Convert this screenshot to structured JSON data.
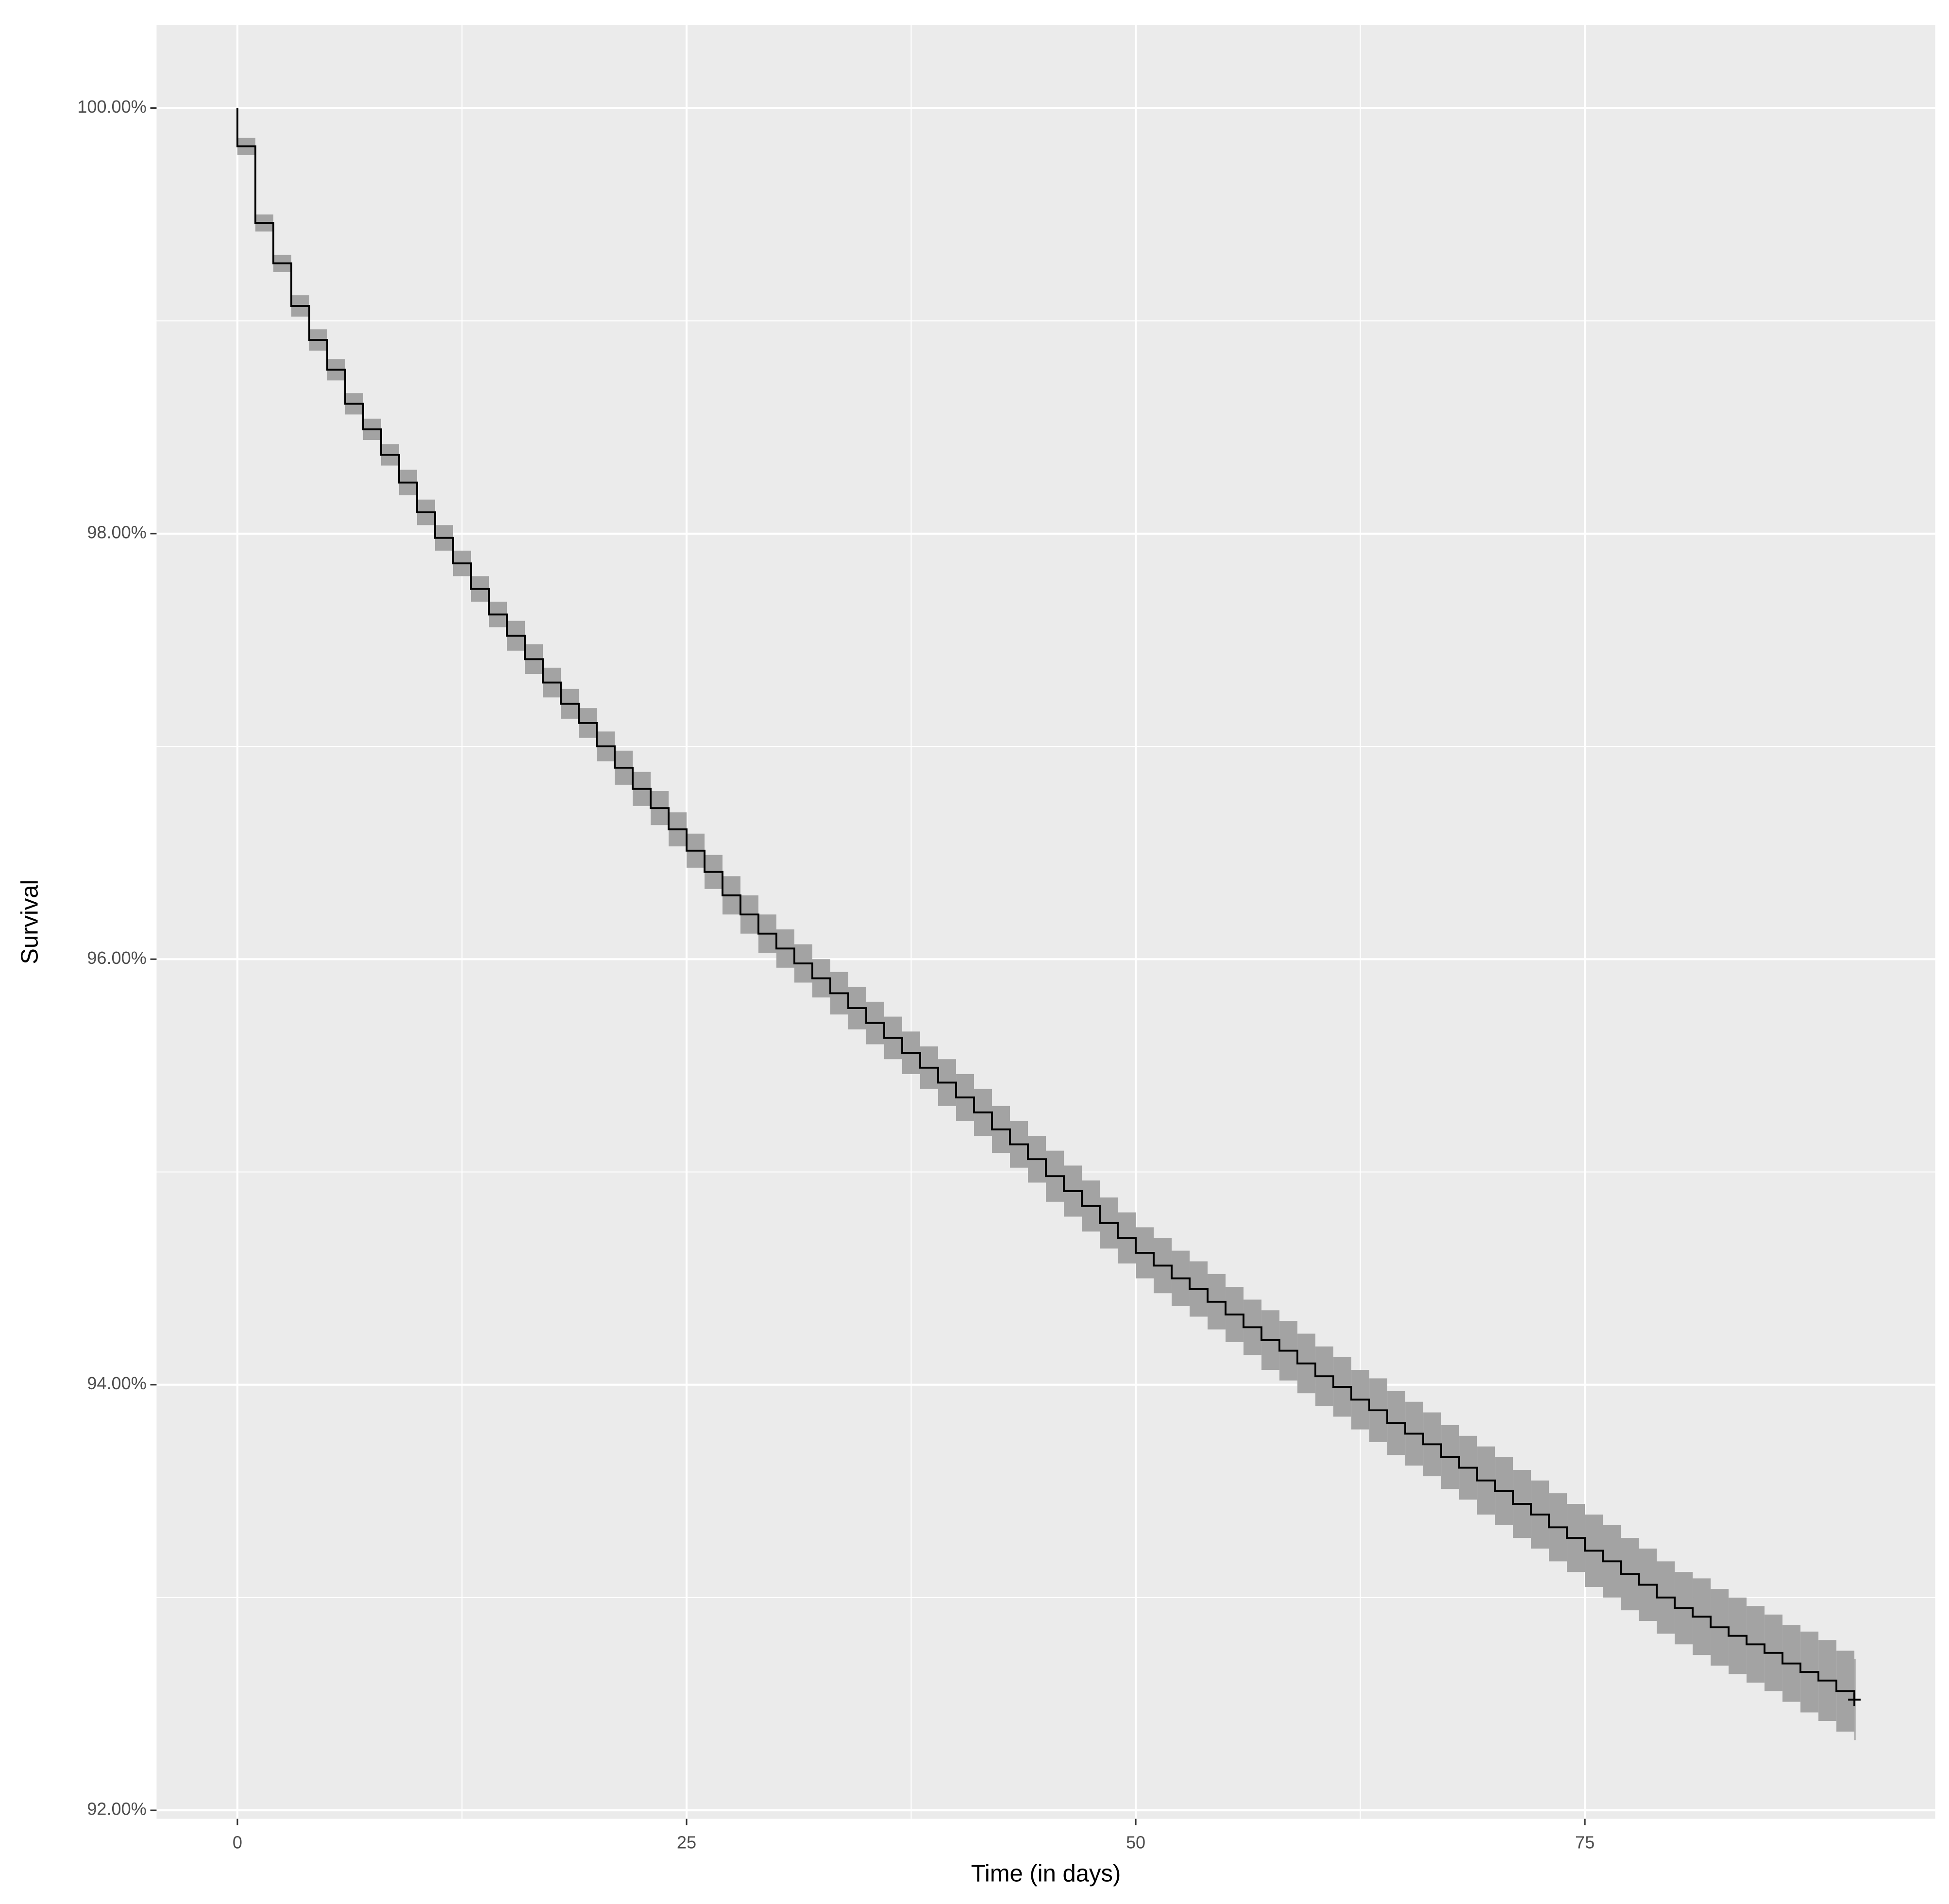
{
  "chart_data": {
    "type": "survival-step",
    "x_label": "Time (in days)",
    "y_label": "Survival",
    "x": [
      0,
      0,
      1,
      2,
      3,
      4,
      5,
      6,
      7,
      8,
      9,
      10,
      11,
      12,
      13,
      14,
      15,
      16,
      17,
      18,
      19,
      20,
      21,
      22,
      23,
      24,
      25,
      26,
      27,
      28,
      29,
      30,
      31,
      32,
      33,
      34,
      35,
      36,
      37,
      38,
      39,
      40,
      41,
      42,
      43,
      44,
      45,
      46,
      47,
      48,
      49,
      50,
      51,
      52,
      53,
      54,
      55,
      56,
      57,
      58,
      59,
      60,
      61,
      62,
      63,
      64,
      65,
      66,
      67,
      68,
      69,
      70,
      71,
      72,
      73,
      74,
      75,
      76,
      77,
      78,
      79,
      80,
      81,
      82,
      83,
      84,
      85,
      86,
      87,
      88,
      89,
      90
    ],
    "values": [
      100,
      99.82,
      99.46,
      99.27,
      99.07,
      98.91,
      98.77,
      98.61,
      98.49,
      98.37,
      98.24,
      98.1,
      97.98,
      97.86,
      97.74,
      97.62,
      97.52,
      97.41,
      97.3,
      97.2,
      97.11,
      97.0,
      96.9,
      96.8,
      96.71,
      96.61,
      96.51,
      96.41,
      96.3,
      96.21,
      96.12,
      96.05,
      95.98,
      95.91,
      95.84,
      95.77,
      95.7,
      95.63,
      95.56,
      95.49,
      95.42,
      95.35,
      95.28,
      95.2,
      95.13,
      95.06,
      94.98,
      94.91,
      94.84,
      94.76,
      94.69,
      94.62,
      94.56,
      94.5,
      94.45,
      94.39,
      94.33,
      94.27,
      94.21,
      94.16,
      94.1,
      94.04,
      93.99,
      93.93,
      93.88,
      93.82,
      93.77,
      93.72,
      93.66,
      93.61,
      93.55,
      93.5,
      93.44,
      93.39,
      93.33,
      93.28,
      93.22,
      93.17,
      93.11,
      93.06,
      93.0,
      92.95,
      92.91,
      92.86,
      92.82,
      92.78,
      92.74,
      92.69,
      92.65,
      92.61,
      92.56,
      92.52
    ],
    "upper": [
      100,
      99.86,
      99.5,
      99.31,
      99.12,
      98.96,
      98.82,
      98.66,
      98.54,
      98.42,
      98.3,
      98.16,
      98.04,
      97.92,
      97.8,
      97.68,
      97.59,
      97.48,
      97.37,
      97.27,
      97.18,
      97.07,
      96.98,
      96.88,
      96.79,
      96.69,
      96.59,
      96.49,
      96.39,
      96.3,
      96.21,
      96.14,
      96.07,
      96.0,
      95.94,
      95.87,
      95.8,
      95.73,
      95.66,
      95.59,
      95.53,
      95.46,
      95.39,
      95.31,
      95.24,
      95.17,
      95.1,
      95.03,
      94.96,
      94.88,
      94.81,
      94.74,
      94.69,
      94.63,
      94.58,
      94.52,
      94.46,
      94.4,
      94.35,
      94.3,
      94.24,
      94.18,
      94.13,
      94.07,
      94.03,
      93.97,
      93.92,
      93.87,
      93.81,
      93.76,
      93.71,
      93.66,
      93.6,
      93.55,
      93.49,
      93.44,
      93.39,
      93.34,
      93.28,
      93.23,
      93.17,
      93.12,
      93.09,
      93.04,
      93.0,
      92.96,
      92.92,
      92.87,
      92.84,
      92.8,
      92.75,
      92.71
    ],
    "lower": [
      100,
      99.78,
      99.42,
      99.23,
      99.02,
      98.86,
      98.72,
      98.56,
      98.44,
      98.32,
      98.18,
      98.04,
      97.92,
      97.8,
      97.68,
      97.56,
      97.45,
      97.34,
      97.23,
      97.13,
      97.04,
      96.93,
      96.82,
      96.72,
      96.63,
      96.53,
      96.43,
      96.33,
      96.21,
      96.12,
      96.03,
      95.96,
      95.89,
      95.82,
      95.74,
      95.67,
      95.6,
      95.53,
      95.46,
      95.39,
      95.31,
      95.24,
      95.17,
      95.09,
      95.02,
      94.95,
      94.86,
      94.79,
      94.72,
      94.64,
      94.57,
      94.5,
      94.43,
      94.37,
      94.32,
      94.26,
      94.2,
      94.14,
      94.07,
      94.02,
      93.96,
      93.9,
      93.85,
      93.79,
      93.73,
      93.67,
      93.62,
      93.57,
      93.51,
      93.46,
      93.39,
      93.34,
      93.28,
      93.23,
      93.17,
      93.12,
      93.05,
      93.0,
      92.94,
      92.89,
      92.83,
      92.78,
      92.73,
      92.68,
      92.64,
      92.6,
      92.56,
      92.51,
      92.46,
      92.42,
      92.37,
      92.33
    ],
    "color": "#000000",
    "band_color": "#a3a3a3",
    "panel_color": "#ebebeb",
    "censor_mark": true,
    "xlim": [
      -4.5,
      94.5
    ],
    "xticks": [
      0,
      25,
      50,
      75
    ],
    "ylim": [
      91.96,
      100.39
    ],
    "yticks": [
      {
        "value": 92,
        "label": "92.00%"
      },
      {
        "value": 94,
        "label": "94.00%"
      },
      {
        "value": 96,
        "label": "96.00%"
      },
      {
        "value": 98,
        "label": "98.00%"
      },
      {
        "value": 100,
        "label": "100.00%"
      }
    ],
    "grid": true
  }
}
